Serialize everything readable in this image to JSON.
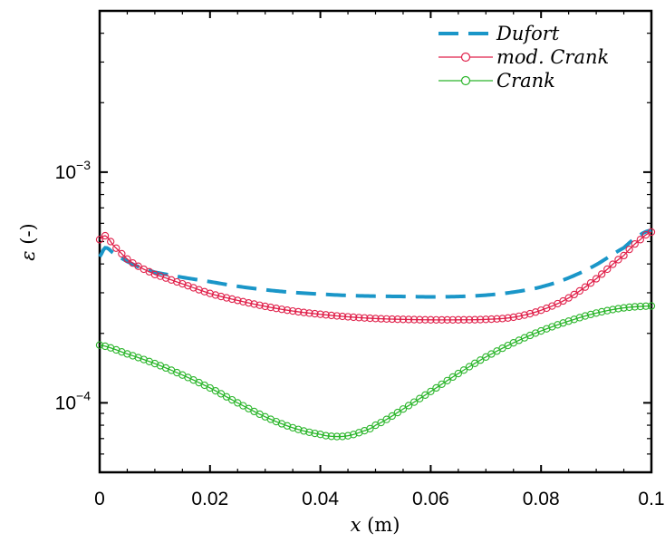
{
  "chart_data": {
    "type": "line",
    "title": "",
    "xlabel_var": "x",
    "xlabel_unit": "(m)",
    "ylabel_var": "ε",
    "ylabel_unit": "(-)",
    "xlim": [
      0,
      0.1
    ],
    "ylim": [
      5e-05,
      0.005
    ],
    "yscale": "log",
    "grid": false,
    "legend_position": "top-right",
    "x_ticks": [
      0,
      0.02,
      0.04,
      0.06,
      0.08,
      0.1
    ],
    "x_tick_labels": [
      "0",
      "0.02",
      "0.04",
      "0.06",
      "0.08",
      "0.1"
    ],
    "y_ticks": [
      {
        "value": 0.0001,
        "base": "10",
        "exp": "−4"
      },
      {
        "value": 0.001,
        "base": "10",
        "exp": "−3"
      }
    ],
    "series": [
      {
        "name": "Dufort",
        "color": "#1a96c8",
        "style": "dashed",
        "marker": "none",
        "x": [
          0,
          0.001,
          0.0025,
          0.005,
          0.0075,
          0.01,
          0.015,
          0.02,
          0.025,
          0.03,
          0.035,
          0.04,
          0.045,
          0.05,
          0.055,
          0.06,
          0.065,
          0.07,
          0.075,
          0.08,
          0.085,
          0.09,
          0.095,
          0.098,
          0.1
        ],
        "y": [
          0.00043,
          0.00047,
          0.000445,
          0.00041,
          0.000385,
          0.000368,
          0.00035,
          0.000335,
          0.00032,
          0.000309,
          0.000301,
          0.000296,
          0.000292,
          0.00029,
          0.000289,
          0.000288,
          0.000289,
          0.000293,
          0.000302,
          0.000318,
          0.000348,
          0.000397,
          0.00047,
          0.000535,
          0.00056
        ]
      },
      {
        "name": "mod. Crank",
        "color": "#e0204a",
        "style": "solid",
        "marker": "circle",
        "x": [
          0,
          0.001,
          0.0025,
          0.005,
          0.0075,
          0.01,
          0.015,
          0.02,
          0.025,
          0.03,
          0.035,
          0.04,
          0.045,
          0.05,
          0.055,
          0.06,
          0.065,
          0.07,
          0.075,
          0.08,
          0.085,
          0.09,
          0.095,
          0.098,
          0.1
        ],
        "y": [
          0.00051,
          0.00053,
          0.00048,
          0.00042,
          0.000385,
          0.00036,
          0.000328,
          0.000298,
          0.000278,
          0.000262,
          0.00025,
          0.000242,
          0.000236,
          0.000232,
          0.00023,
          0.000229,
          0.000229,
          0.00023,
          0.000235,
          0.000252,
          0.000285,
          0.000345,
          0.000435,
          0.00051,
          0.00055
        ]
      },
      {
        "name": "Crank",
        "color": "#2ab52a",
        "style": "solid",
        "marker": "circle",
        "x": [
          0,
          0.005,
          0.01,
          0.015,
          0.02,
          0.025,
          0.03,
          0.035,
          0.04,
          0.0425,
          0.045,
          0.0475,
          0.05,
          0.055,
          0.06,
          0.065,
          0.07,
          0.075,
          0.08,
          0.085,
          0.09,
          0.095,
          0.1
        ],
        "y": [
          0.000178,
          0.000163,
          0.000148,
          0.000132,
          0.000116,
          0.0001,
          8.7e-05,
          7.8e-05,
          7.3e-05,
          7.15e-05,
          7.2e-05,
          7.5e-05,
          8e-05,
          9.4e-05,
          0.000112,
          0.000134,
          0.000158,
          0.000182,
          0.000205,
          0.000226,
          0.000245,
          0.000258,
          0.000263
        ]
      }
    ]
  }
}
